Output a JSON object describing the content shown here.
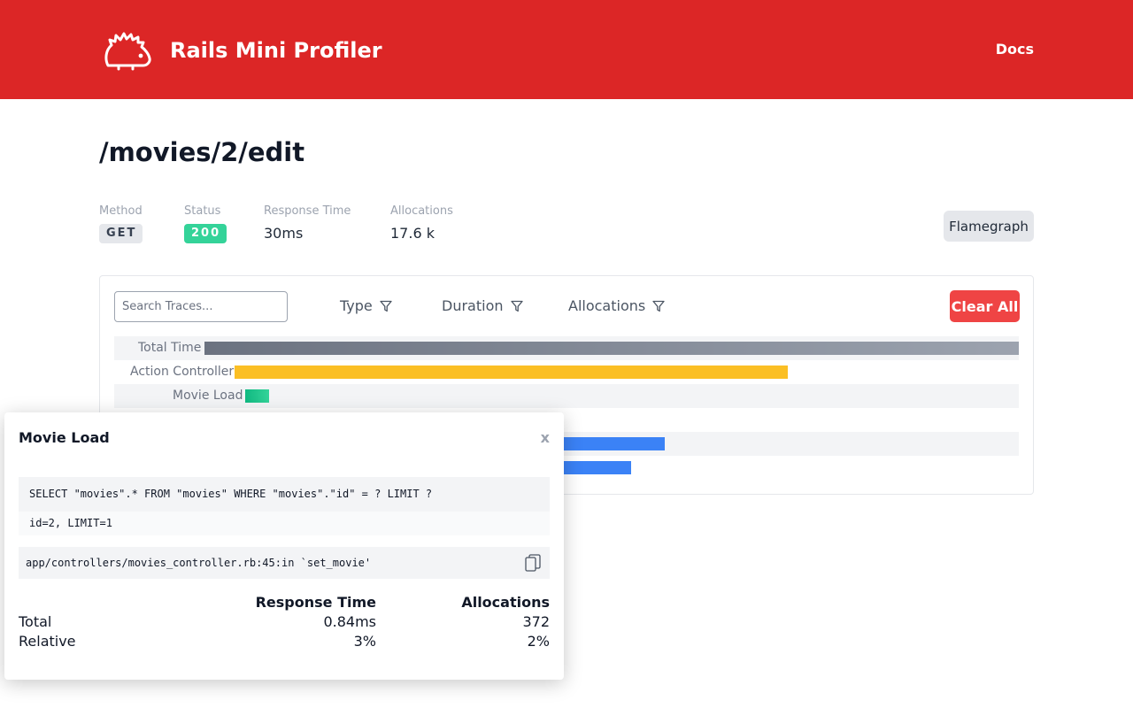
{
  "header": {
    "brand": "Rails Mini Profiler",
    "docs_label": "Docs",
    "logo_icon": "hedgehog-icon",
    "background": "#dc2626"
  },
  "request": {
    "path": "/movies/2/edit",
    "method_label": "Method",
    "method": "GET",
    "status_label": "Status",
    "status": "200",
    "response_time_label": "Response Time",
    "response_time": "30ms",
    "allocations_label": "Allocations",
    "allocations": "17.6 k"
  },
  "flamegraph_label": "Flamegraph",
  "traces_panel": {
    "search_placeholder": "Search Traces...",
    "filters": {
      "type": "Type",
      "duration": "Duration",
      "allocations": "Allocations",
      "icon": "filter-icon"
    },
    "clear_all_label": "Clear All",
    "rows": [
      {
        "label": "Total Time",
        "color": "gray"
      },
      {
        "label": "Action Controller",
        "color": "#fbbf24"
      },
      {
        "label": "Movie Load",
        "color": "#10b981"
      },
      {
        "label": "",
        "color": "#3b82f6"
      },
      {
        "label": "",
        "color": "#3b82f6"
      }
    ]
  },
  "popover": {
    "title": "Movie Load",
    "close_label": "x",
    "sql": "SELECT \"movies\".* FROM \"movies\" WHERE \"movies\".\"id\" = ? LIMIT ?",
    "binds": "id=2, LIMIT=1",
    "backtrace": "app/controllers/movies_controller.rb:45:in `set_movie'",
    "copy_icon": "copy-icon",
    "stats": {
      "col_response_time": "Response Time",
      "col_allocations": "Allocations",
      "total_label": "Total",
      "total_time": "0.84ms",
      "total_allocations": "372",
      "relative_label": "Relative",
      "relative_time": "3%",
      "relative_allocations": "2%"
    }
  }
}
